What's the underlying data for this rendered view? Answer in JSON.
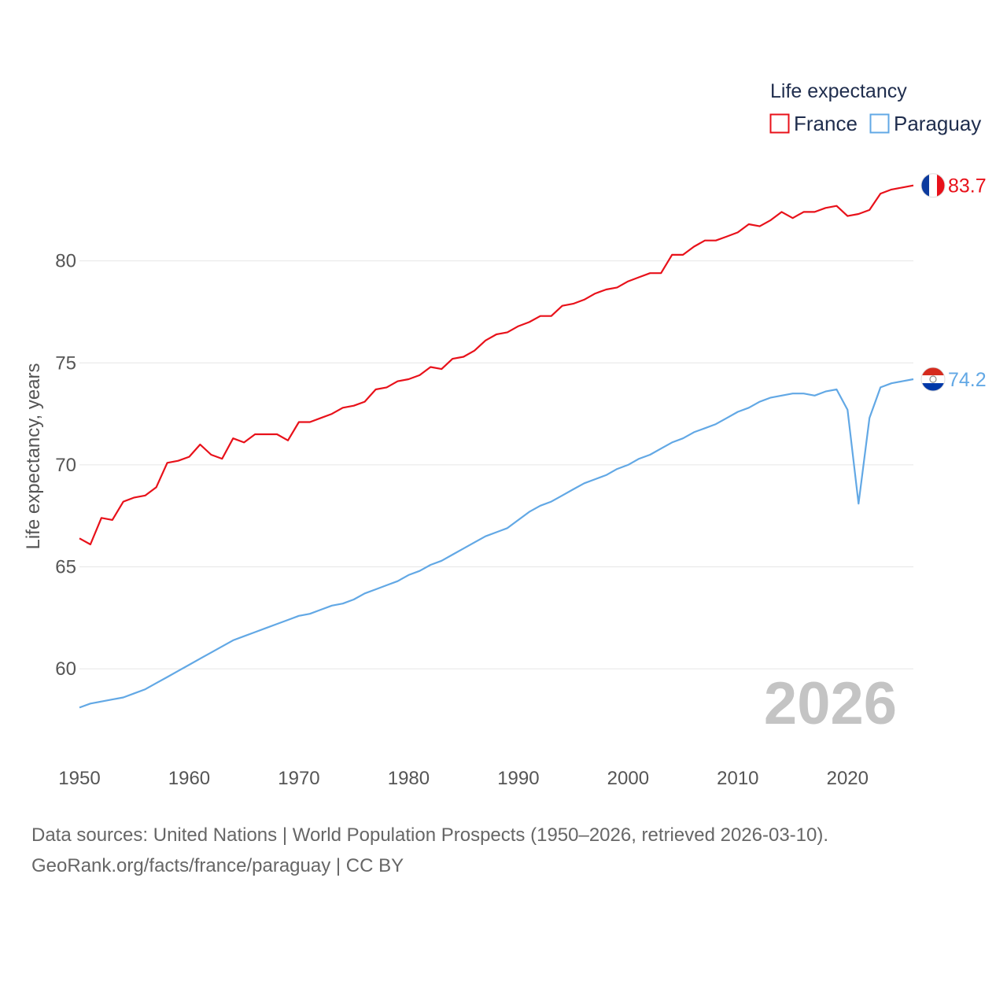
{
  "chart_data": {
    "type": "line",
    "xlim": [
      1950,
      2026
    ],
    "ylim": [
      57.5,
      84.5
    ],
    "x_ticks": [
      1950,
      1960,
      1970,
      1980,
      1990,
      2000,
      2010,
      2020
    ],
    "y_ticks": [
      60,
      65,
      70,
      75,
      80
    ],
    "ylabel": "Life expectancy, years",
    "legend_title": "Life expectancy",
    "year_label": "2026",
    "x_start": 1950,
    "series": [
      {
        "name": "France",
        "color": "#e8111a",
        "end_label": "83.7",
        "values": [
          66.4,
          66.1,
          67.4,
          67.3,
          68.2,
          68.4,
          68.5,
          68.9,
          70.1,
          70.2,
          70.4,
          71.0,
          70.5,
          70.3,
          71.3,
          71.1,
          71.5,
          71.5,
          71.5,
          71.2,
          72.1,
          72.1,
          72.3,
          72.5,
          72.8,
          72.9,
          73.1,
          73.7,
          73.8,
          74.1,
          74.2,
          74.4,
          74.8,
          74.7,
          75.2,
          75.3,
          75.6,
          76.1,
          76.4,
          76.5,
          76.8,
          77.0,
          77.3,
          77.3,
          77.8,
          77.9,
          78.1,
          78.4,
          78.6,
          78.7,
          79.0,
          79.2,
          79.4,
          79.4,
          80.3,
          80.3,
          80.7,
          81.0,
          81.0,
          81.2,
          81.4,
          81.8,
          81.7,
          82.0,
          82.4,
          82.1,
          82.4,
          82.4,
          82.6,
          82.7,
          82.2,
          82.3,
          82.5,
          83.3,
          83.5,
          83.6,
          83.7
        ]
      },
      {
        "name": "Paraguay",
        "color": "#62a8e5",
        "end_label": "74.2",
        "values": [
          58.1,
          58.3,
          58.4,
          58.5,
          58.6,
          58.8,
          59.0,
          59.3,
          59.6,
          59.9,
          60.2,
          60.5,
          60.8,
          61.1,
          61.4,
          61.6,
          61.8,
          62.0,
          62.2,
          62.4,
          62.6,
          62.7,
          62.9,
          63.1,
          63.2,
          63.4,
          63.7,
          63.9,
          64.1,
          64.3,
          64.6,
          64.8,
          65.1,
          65.3,
          65.6,
          65.9,
          66.2,
          66.5,
          66.7,
          66.9,
          67.3,
          67.7,
          68.0,
          68.2,
          68.5,
          68.8,
          69.1,
          69.3,
          69.5,
          69.8,
          70.0,
          70.3,
          70.5,
          70.8,
          71.1,
          71.3,
          71.6,
          71.8,
          72.0,
          72.3,
          72.6,
          72.8,
          73.1,
          73.3,
          73.4,
          73.5,
          73.5,
          73.4,
          73.6,
          73.7,
          72.7,
          68.1,
          72.3,
          73.8,
          74.0,
          74.1,
          74.2
        ]
      }
    ]
  },
  "footer": {
    "line1": "Data sources: United Nations | World Population Prospects (1950–2026, retrieved 2026-03-10).",
    "line2": "GeoRank.org/facts/france/paraguay | CC BY"
  }
}
